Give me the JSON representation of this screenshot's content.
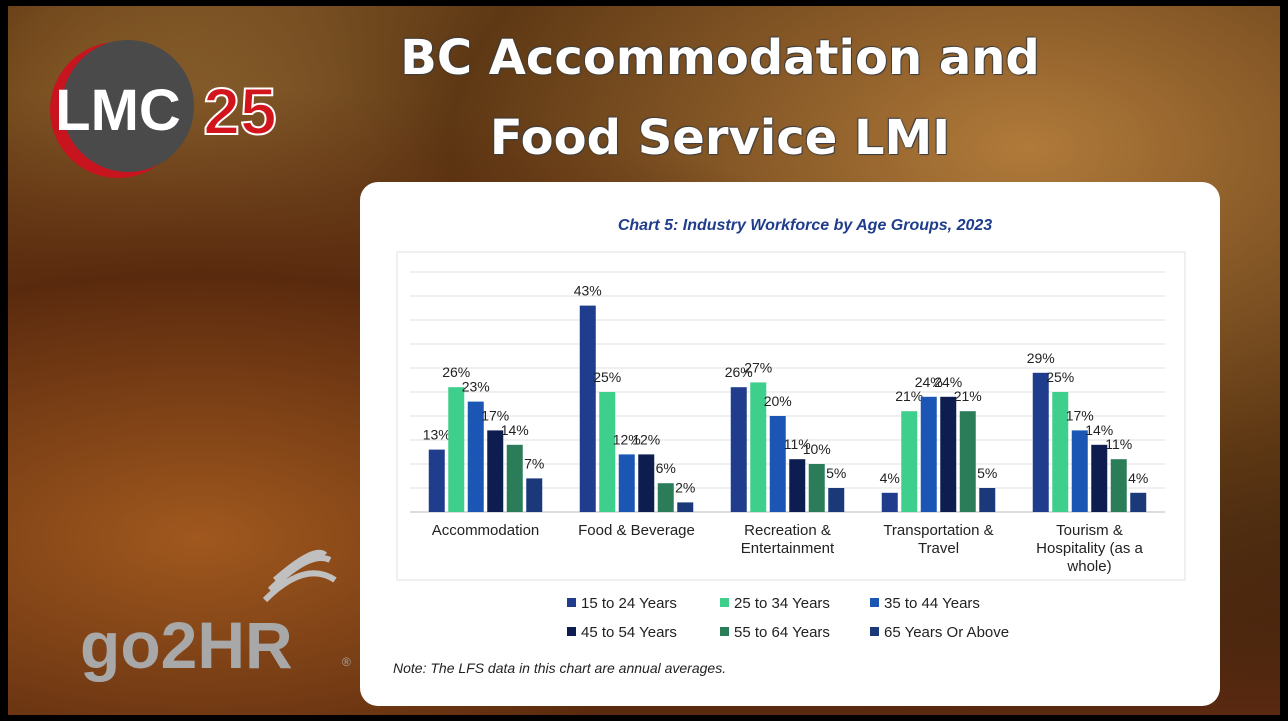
{
  "slide": {
    "title_lines": [
      "BC Accommodation and",
      "Food Service LMI"
    ],
    "logo": {
      "letters": "LMC",
      "number": "25"
    },
    "brand": "go2HR",
    "brand_mark": "®"
  },
  "chart_data": {
    "type": "bar",
    "title": "Chart 5: Industry Workforce by Age Groups, 2023",
    "categories": [
      "Accommodation",
      "Food & Beverage",
      "Recreation & Entertainment",
      "Transportation & Travel",
      "Tourism & Hospitality (as a whole)"
    ],
    "series": [
      {
        "name": "15 to 24 Years",
        "color": "#1f3d8c",
        "values": [
          13,
          43,
          26,
          4,
          29
        ],
        "value_labels": [
          "13%",
          "43%",
          "26%",
          "4%",
          "29%"
        ]
      },
      {
        "name": "25 to 34 Years",
        "color": "#3fcf8c",
        "values": [
          26,
          25,
          27,
          21,
          25
        ],
        "value_labels": [
          "26%",
          "25%",
          "27%",
          "21%",
          "25%"
        ]
      },
      {
        "name": "35 to 44 Years",
        "color": "#1c56b4",
        "values": [
          23,
          12,
          20,
          24,
          17
        ],
        "value_labels": [
          "23%",
          "12%",
          "20%",
          "24%",
          "17%"
        ]
      },
      {
        "name": "45 to 54 Years",
        "color": "#0e1d4f",
        "values": [
          17,
          12,
          11,
          24,
          14
        ],
        "value_labels": [
          "17%",
          "12%",
          "11%",
          "24%",
          "14%"
        ]
      },
      {
        "name": "55 to 64 Years",
        "color": "#2b7d59",
        "values": [
          14,
          6,
          10,
          21,
          11
        ],
        "value_labels": [
          "14%",
          "6%",
          "10%",
          "21%",
          "11%"
        ]
      },
      {
        "name": "65 Years Or Above",
        "color": "#1b3878",
        "values": [
          7,
          2,
          5,
          5,
          4
        ],
        "value_labels": [
          "7%",
          "2%",
          "5%",
          "5%",
          "4%"
        ]
      }
    ],
    "ylim": [
      0,
      50
    ],
    "yticks": [
      0,
      5,
      10,
      15,
      20,
      25,
      30,
      35,
      40,
      45,
      50
    ],
    "grid": true,
    "legend": "bottom",
    "note": "Note: The LFS data in this chart are annual averages."
  }
}
